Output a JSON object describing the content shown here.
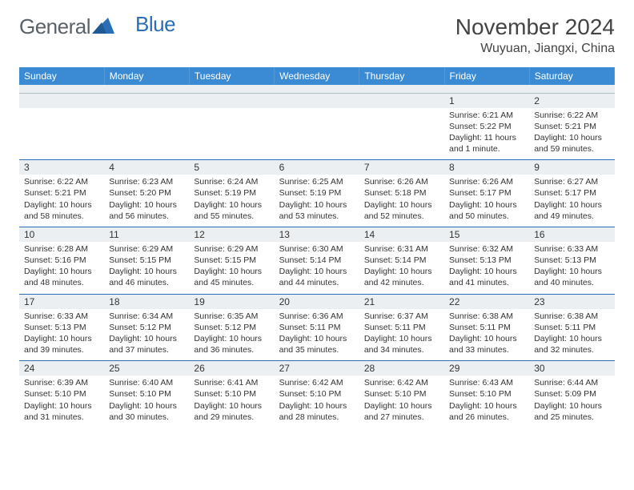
{
  "header": {
    "logo_general": "General",
    "logo_blue": "Blue",
    "month_title": "November 2024",
    "location": "Wuyuan, Jiangxi, China"
  },
  "style": {
    "header_bg": "#3b8bd4",
    "header_text": "#ffffff",
    "daynum_bg": "#eceff1",
    "row_border": "#2a6fb5",
    "body_text": "#333333",
    "logo_gray": "#5a6268",
    "logo_blue": "#2a6fb5",
    "page_bg": "#ffffff",
    "title_fontsize": 28,
    "location_fontsize": 16,
    "dayhead_fontsize": 12,
    "daynum_fontsize": 12,
    "daybody_fontsize": 10.5
  },
  "weekdays": [
    "Sunday",
    "Monday",
    "Tuesday",
    "Wednesday",
    "Thursday",
    "Friday",
    "Saturday"
  ],
  "cells": [
    [
      {
        "n": "",
        "t": ""
      },
      {
        "n": "",
        "t": ""
      },
      {
        "n": "",
        "t": ""
      },
      {
        "n": "",
        "t": ""
      },
      {
        "n": "",
        "t": ""
      },
      {
        "n": "1",
        "t": "Sunrise: 6:21 AM\nSunset: 5:22 PM\nDaylight: 11 hours and 1 minute."
      },
      {
        "n": "2",
        "t": "Sunrise: 6:22 AM\nSunset: 5:21 PM\nDaylight: 10 hours and 59 minutes."
      }
    ],
    [
      {
        "n": "3",
        "t": "Sunrise: 6:22 AM\nSunset: 5:21 PM\nDaylight: 10 hours and 58 minutes."
      },
      {
        "n": "4",
        "t": "Sunrise: 6:23 AM\nSunset: 5:20 PM\nDaylight: 10 hours and 56 minutes."
      },
      {
        "n": "5",
        "t": "Sunrise: 6:24 AM\nSunset: 5:19 PM\nDaylight: 10 hours and 55 minutes."
      },
      {
        "n": "6",
        "t": "Sunrise: 6:25 AM\nSunset: 5:19 PM\nDaylight: 10 hours and 53 minutes."
      },
      {
        "n": "7",
        "t": "Sunrise: 6:26 AM\nSunset: 5:18 PM\nDaylight: 10 hours and 52 minutes."
      },
      {
        "n": "8",
        "t": "Sunrise: 6:26 AM\nSunset: 5:17 PM\nDaylight: 10 hours and 50 minutes."
      },
      {
        "n": "9",
        "t": "Sunrise: 6:27 AM\nSunset: 5:17 PM\nDaylight: 10 hours and 49 minutes."
      }
    ],
    [
      {
        "n": "10",
        "t": "Sunrise: 6:28 AM\nSunset: 5:16 PM\nDaylight: 10 hours and 48 minutes."
      },
      {
        "n": "11",
        "t": "Sunrise: 6:29 AM\nSunset: 5:15 PM\nDaylight: 10 hours and 46 minutes."
      },
      {
        "n": "12",
        "t": "Sunrise: 6:29 AM\nSunset: 5:15 PM\nDaylight: 10 hours and 45 minutes."
      },
      {
        "n": "13",
        "t": "Sunrise: 6:30 AM\nSunset: 5:14 PM\nDaylight: 10 hours and 44 minutes."
      },
      {
        "n": "14",
        "t": "Sunrise: 6:31 AM\nSunset: 5:14 PM\nDaylight: 10 hours and 42 minutes."
      },
      {
        "n": "15",
        "t": "Sunrise: 6:32 AM\nSunset: 5:13 PM\nDaylight: 10 hours and 41 minutes."
      },
      {
        "n": "16",
        "t": "Sunrise: 6:33 AM\nSunset: 5:13 PM\nDaylight: 10 hours and 40 minutes."
      }
    ],
    [
      {
        "n": "17",
        "t": "Sunrise: 6:33 AM\nSunset: 5:13 PM\nDaylight: 10 hours and 39 minutes."
      },
      {
        "n": "18",
        "t": "Sunrise: 6:34 AM\nSunset: 5:12 PM\nDaylight: 10 hours and 37 minutes."
      },
      {
        "n": "19",
        "t": "Sunrise: 6:35 AM\nSunset: 5:12 PM\nDaylight: 10 hours and 36 minutes."
      },
      {
        "n": "20",
        "t": "Sunrise: 6:36 AM\nSunset: 5:11 PM\nDaylight: 10 hours and 35 minutes."
      },
      {
        "n": "21",
        "t": "Sunrise: 6:37 AM\nSunset: 5:11 PM\nDaylight: 10 hours and 34 minutes."
      },
      {
        "n": "22",
        "t": "Sunrise: 6:38 AM\nSunset: 5:11 PM\nDaylight: 10 hours and 33 minutes."
      },
      {
        "n": "23",
        "t": "Sunrise: 6:38 AM\nSunset: 5:11 PM\nDaylight: 10 hours and 32 minutes."
      }
    ],
    [
      {
        "n": "24",
        "t": "Sunrise: 6:39 AM\nSunset: 5:10 PM\nDaylight: 10 hours and 31 minutes."
      },
      {
        "n": "25",
        "t": "Sunrise: 6:40 AM\nSunset: 5:10 PM\nDaylight: 10 hours and 30 minutes."
      },
      {
        "n": "26",
        "t": "Sunrise: 6:41 AM\nSunset: 5:10 PM\nDaylight: 10 hours and 29 minutes."
      },
      {
        "n": "27",
        "t": "Sunrise: 6:42 AM\nSunset: 5:10 PM\nDaylight: 10 hours and 28 minutes."
      },
      {
        "n": "28",
        "t": "Sunrise: 6:42 AM\nSunset: 5:10 PM\nDaylight: 10 hours and 27 minutes."
      },
      {
        "n": "29",
        "t": "Sunrise: 6:43 AM\nSunset: 5:10 PM\nDaylight: 10 hours and 26 minutes."
      },
      {
        "n": "30",
        "t": "Sunrise: 6:44 AM\nSunset: 5:09 PM\nDaylight: 10 hours and 25 minutes."
      }
    ]
  ]
}
